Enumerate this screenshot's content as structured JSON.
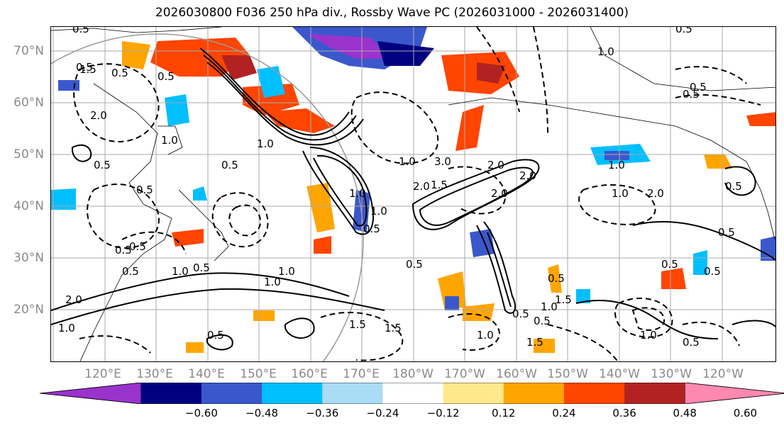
{
  "title": "2026030800 F036 250 hPa div., Rossby Wave PC (2026031000 - 2026031400)",
  "lat_labels": [
    "70°N",
    "60°N",
    "50°N",
    "40°N",
    "30°N",
    "20°N"
  ],
  "lon_labels": [
    "120°E",
    "130°E",
    "140°E",
    "150°E",
    "160°E",
    "170°E",
    "180°W",
    "170°W",
    "160°W",
    "150°W",
    "140°W",
    "130°W",
    "120°W"
  ],
  "colorbar": {
    "colors": [
      "#9933cc",
      "#000080",
      "#3a58cc",
      "#00bfff",
      "#aadcf5",
      "#ffffff",
      "#ffe98a",
      "#ffa500",
      "#ff4500",
      "#b22222",
      "#ff88b0"
    ],
    "ticks": [
      "−0.60",
      "−0.48",
      "−0.36",
      "−0.24",
      "−0.12",
      "0.12",
      "0.24",
      "0.36",
      "0.48",
      "0.60"
    ]
  },
  "contour_labels": [
    "0.5",
    "0.5",
    "0.5",
    "1.0",
    "1.5",
    "0.5",
    "0.5",
    "0.5",
    "0.5",
    "2.0",
    "1.0",
    "1.0",
    "1.0",
    "0.5",
    "0.5",
    "2.0",
    "1.5",
    "1.0",
    "1.0",
    "0.5",
    "0.5",
    "2.0",
    "2.0",
    "3.0",
    "2.0",
    "1.0",
    "2.0",
    "1.0",
    "0.5",
    "1.0",
    "0.5",
    "1.0",
    "0.5",
    "1.5",
    "0.5",
    "1.0",
    "1.5",
    "0.5",
    "0.5",
    "0.5",
    "1.5",
    "2.0",
    "1.0",
    "1.0",
    "0.5",
    "0.5",
    "0.5",
    "0.5",
    "0.5",
    "1.0",
    "0.5",
    "1.5",
    "1.0",
    "0.5"
  ]
}
